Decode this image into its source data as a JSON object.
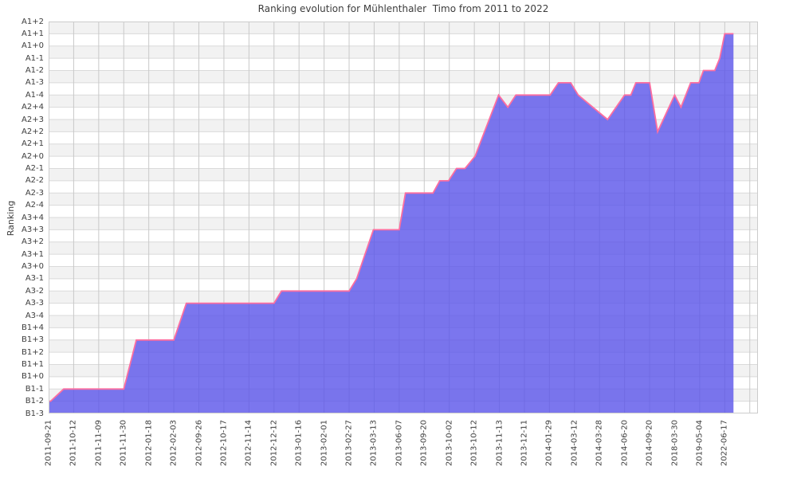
{
  "chart_data": {
    "type": "area",
    "title": "Ranking evolution for Mühlenthaler  Timo from 2011 to 2022",
    "ylabel": "Ranking",
    "legend": null,
    "grid": true,
    "ranks_top_to_bottom": [
      "A1+2",
      "A1+1",
      "A1+0",
      "A1-1",
      "A1-2",
      "A1-3",
      "A1-4",
      "A2+4",
      "A2+3",
      "A2+2",
      "A2+1",
      "A2+0",
      "A2-1",
      "A2-2",
      "A2-3",
      "A2-4",
      "A3+4",
      "A3+3",
      "A3+2",
      "A3+1",
      "A3+0",
      "A3-1",
      "A3-2",
      "A3-3",
      "A3-4",
      "B1+4",
      "B1+3",
      "B1+2",
      "B1+1",
      "B1+0",
      "B1-1",
      "B1-2",
      "B1-3"
    ],
    "categories": [
      "2011-09-21",
      "2011-10-12",
      "2011-11-09",
      "2011-11-30",
      "2012-01-18",
      "2012-02-03",
      "2012-09-26",
      "2012-10-17",
      "2012-11-14",
      "2012-12-12",
      "2013-01-16",
      "2013-02-01",
      "2013-02-27",
      "2013-03-13",
      "2013-06-07",
      "2013-09-20",
      "2013-10-02",
      "2013-10-12",
      "2013-11-13",
      "2013-12-11",
      "2014-01-29",
      "2014-03-12",
      "2014-03-28",
      "2014-06-20",
      "2014-09-20",
      "2018-03-30",
      "2019-05-04",
      "2022-06-17"
    ],
    "values": [
      "B1-2",
      "B1-1",
      "B1-1",
      "B1-1",
      "B1+3",
      "B1+3",
      "A3-3",
      "A3-3",
      "A3-3",
      "A3-3",
      "A3-2",
      "A3-2",
      "A3-2",
      "A3+3",
      "A3+3",
      "A2-3",
      "A2-2",
      "A2+0",
      "A1-4",
      "A1-4",
      "A1-4",
      "A1-3",
      "A2+3",
      "A1-4",
      "A1-3",
      "A1-4",
      "A1-2",
      "A1+1"
    ],
    "outline": [
      [
        0.0,
        "B1-2"
      ],
      [
        0.08,
        "B1-2"
      ],
      [
        0.6,
        "B1-1"
      ],
      [
        3.0,
        "B1-1"
      ],
      [
        3.5,
        "B1+3"
      ],
      [
        5.0,
        "B1+3"
      ],
      [
        5.5,
        "A3-3"
      ],
      [
        9.0,
        "A3-3"
      ],
      [
        9.3,
        "A3-2"
      ],
      [
        12.0,
        "A3-2"
      ],
      [
        12.3,
        "A3-1"
      ],
      [
        12.97,
        "A3+3"
      ],
      [
        14.0,
        "A3+3"
      ],
      [
        14.25,
        "A2-3"
      ],
      [
        15.35,
        "A2-3"
      ],
      [
        15.62,
        "A2-2"
      ],
      [
        15.97,
        "A2-2"
      ],
      [
        16.29,
        "A2-1"
      ],
      [
        16.63,
        "A2-1"
      ],
      [
        17.03,
        "A2+0"
      ],
      [
        17.97,
        "A1-4"
      ],
      [
        18.34,
        "A2+4"
      ],
      [
        18.66,
        "A1-4"
      ],
      [
        20.03,
        "A1-4"
      ],
      [
        20.36,
        "A1-3"
      ],
      [
        20.85,
        "A1-3"
      ],
      [
        21.15,
        "A1-4"
      ],
      [
        22.32,
        "A2+3"
      ],
      [
        23.0,
        "A1-4"
      ],
      [
        23.25,
        "A1-4"
      ],
      [
        23.45,
        "A1-3"
      ],
      [
        24.0,
        "A1-3"
      ],
      [
        24.32,
        "A2+2"
      ],
      [
        25.0,
        "A1-4"
      ],
      [
        25.25,
        "A2+4"
      ],
      [
        25.64,
        "A1-3"
      ],
      [
        25.97,
        "A1-3"
      ],
      [
        26.15,
        "A1-2"
      ],
      [
        26.6,
        "A1-2"
      ],
      [
        26.8,
        "A1-1"
      ],
      [
        27.0,
        "A1+1"
      ],
      [
        27.35,
        "A1+1"
      ]
    ],
    "area_end_pos": 27.35,
    "n_gridline_columns": 29,
    "colors": {
      "fill": "rgba(90,84,234,0.8)",
      "edge": "#fd6ea0",
      "band_gray": "#f2f2f2",
      "band_white": "#ffffff",
      "h_grid": "#dadada",
      "v_grid": "#c9c9c9",
      "frame": "#cccccc",
      "text": "#3d3d3d",
      "background": "#ffffff"
    }
  }
}
